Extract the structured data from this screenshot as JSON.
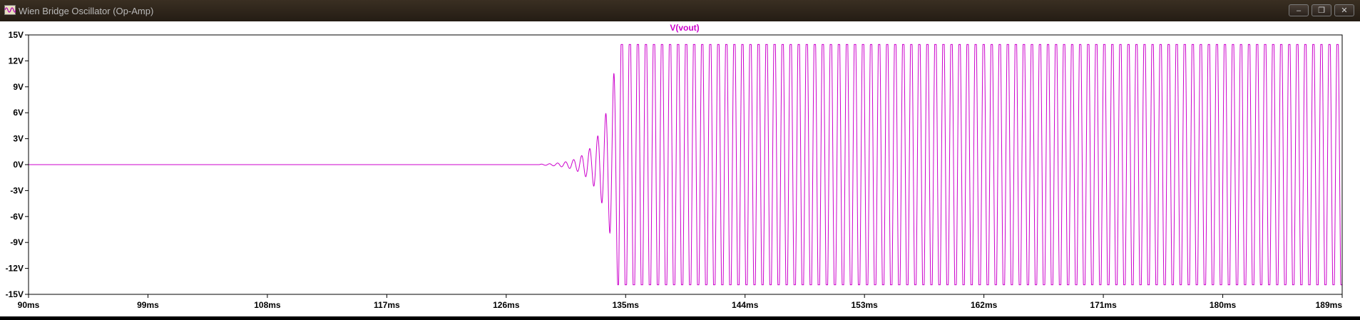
{
  "window": {
    "title": "Wien Bridge Oscillator (Op-Amp)",
    "buttons": {
      "minimize": "–",
      "restore": "❐",
      "close": "✕"
    }
  },
  "colors": {
    "trace": "#cc00cc",
    "axis": "#000000",
    "background": "#ffffff"
  },
  "chart_data": {
    "type": "line",
    "title": "V(vout)",
    "xlabel": "",
    "ylabel": "",
    "xlim": [
      90,
      189
    ],
    "ylim": [
      -15,
      15
    ],
    "x_unit": "ms",
    "y_unit": "V",
    "x_ticks": [
      "90ms",
      "99ms",
      "108ms",
      "117ms",
      "126ms",
      "135ms",
      "144ms",
      "153ms",
      "162ms",
      "171ms",
      "180ms",
      "189ms"
    ],
    "y_ticks": [
      "15V",
      "12V",
      "9V",
      "6V",
      "3V",
      "0V",
      "-3V",
      "-6V",
      "-9V",
      "-12V",
      "-15V"
    ],
    "grid": false,
    "series": [
      {
        "name": "V(vout)",
        "description_points": [
          [
            90,
            0
          ],
          [
            128.5,
            0
          ],
          [
            129.5,
            0.1
          ],
          [
            130.5,
            0.4
          ],
          [
            131.3,
            1.0
          ],
          [
            132.0,
            2.2
          ],
          [
            132.7,
            4.0
          ],
          [
            133.3,
            7.5
          ],
          [
            133.8,
            11
          ],
          [
            134.4,
            14
          ]
        ],
        "steady_amplitude": 13.9,
        "steady_min": -13.9,
        "frequency_khz": 1.65,
        "onset_ms": 128.5,
        "saturation_ms": 134.4
      }
    ]
  }
}
